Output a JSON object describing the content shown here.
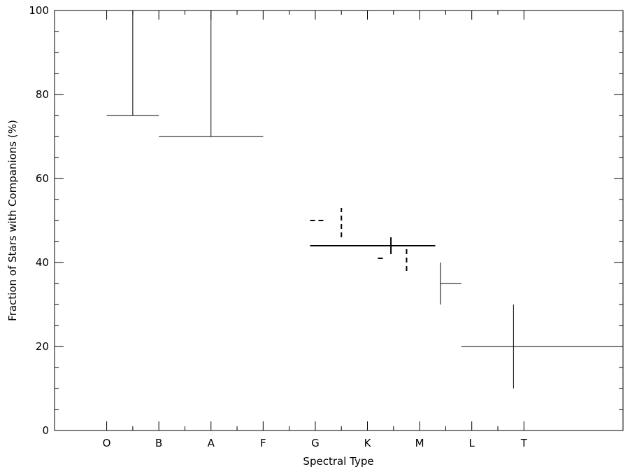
{
  "chart_data": {
    "type": "scatter",
    "xlabel": "Spectral Type",
    "ylabel": "Fraction of Stars with Companions (%)",
    "ylim": [
      0,
      100
    ],
    "grid": false,
    "categories": [
      "O",
      "B",
      "A",
      "F",
      "G",
      "K",
      "M",
      "L",
      "T"
    ],
    "y_ticks": [
      0,
      20,
      40,
      60,
      80,
      100
    ],
    "y_minor_step": 5,
    "x_domain": [
      -1,
      9.9
    ],
    "series": [
      {
        "style": "solid",
        "points": [
          {
            "x_from": 0,
            "x_to": 1,
            "x_center": 0.5,
            "y": 75,
            "y_low": 75,
            "y_high": 100
          },
          {
            "x_from": 1,
            "x_to": 3,
            "x_center": 2,
            "y": 70,
            "y_low": 70,
            "y_high": 100
          },
          {
            "x_from": 3.9,
            "x_to": 6.3,
            "x_center": 5.45,
            "y": 44,
            "y_low": 42,
            "y_high": 46
          },
          {
            "x_from": 6.4,
            "x_to": 6.8,
            "x_center": 6.4,
            "y": 35,
            "y_low": 30,
            "y_high": 40
          },
          {
            "x_from": 6.8,
            "x_to": 9.9,
            "x_center": 7.8,
            "y": 20,
            "y_low": 10,
            "y_high": 30
          }
        ]
      },
      {
        "style": "dashed",
        "points": [
          {
            "x_from": 3.9,
            "x_to": 4.2,
            "x_center": 4.5,
            "y": 50,
            "y_low": 46,
            "y_high": 53
          },
          {
            "x_from": 5.2,
            "x_to": 5.3,
            "x_center": 5.75,
            "y": 41,
            "y_low": 38,
            "y_high": 44
          }
        ]
      }
    ]
  }
}
